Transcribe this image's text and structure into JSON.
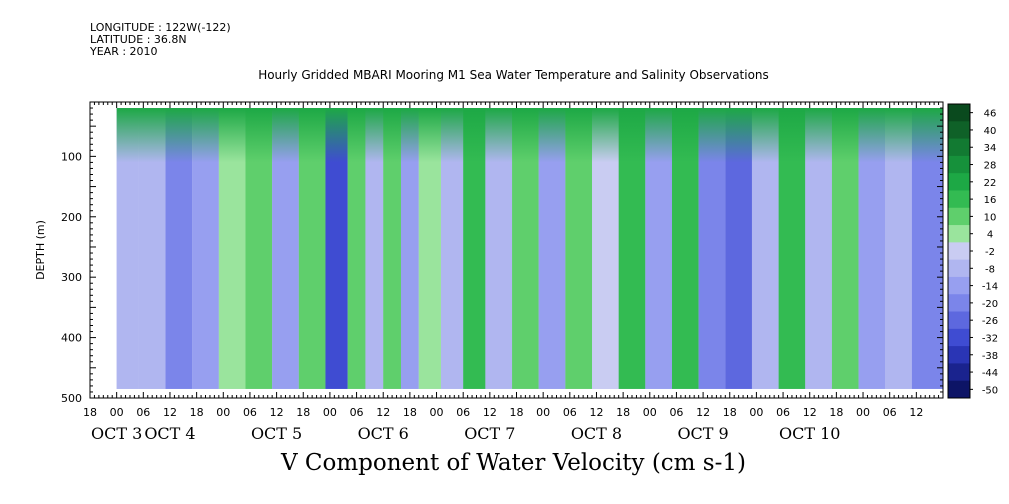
{
  "header": {
    "longitude": "LONGITUDE : 122W(-122)",
    "latitude": "LATITUDE : 36.8N",
    "year": "YEAR : 2010"
  },
  "chart_data": {
    "type": "heatmap",
    "title": "Hourly Gridded MBARI Mooring M1 Sea Water Temperature and Salinity Observations",
    "xlabel": "V Component of Water Velocity (cm s-1)",
    "ylabel": "DEPTH (m)",
    "ylim": [
      500,
      10
    ],
    "y_ticks": [
      100,
      200,
      300,
      400,
      500
    ],
    "x_range_hours": [
      -6,
      186
    ],
    "x_hour_ticks": [
      "18",
      "00",
      "06",
      "12",
      "18",
      "00",
      "06",
      "12",
      "18",
      "00",
      "06",
      "12",
      "18",
      "00",
      "06",
      "12",
      "18",
      "00",
      "06",
      "12",
      "18",
      "00",
      "06",
      "12",
      "18",
      "00",
      "06",
      "12",
      "18",
      "00",
      "06",
      "12"
    ],
    "x_day_labels": [
      {
        "label": "OCT  3",
        "hour": 0
      },
      {
        "label": "OCT  4",
        "hour": 12
      },
      {
        "label": "OCT  5",
        "hour": 36
      },
      {
        "label": "OCT  6",
        "hour": 60
      },
      {
        "label": "OCT  7",
        "hour": 84
      },
      {
        "label": "OCT  8",
        "hour": 108
      },
      {
        "label": "OCT  9",
        "hour": 132
      },
      {
        "label": "OCT 10",
        "hour": 156
      }
    ],
    "colorbar": {
      "labels": [
        "46",
        "40",
        "34",
        "28",
        "22",
        "16",
        "10",
        "4",
        "-2",
        "-8",
        "-14",
        "-20",
        "-26",
        "-32",
        "-38",
        "-44",
        "-50"
      ],
      "bands": [
        {
          "min": 43,
          "color": "#0a4a1e"
        },
        {
          "min": 37,
          "color": "#0f6128"
        },
        {
          "min": 31,
          "color": "#127a32"
        },
        {
          "min": 25,
          "color": "#16913b"
        },
        {
          "min": 19,
          "color": "#1da845"
        },
        {
          "min": 13,
          "color": "#33bb52"
        },
        {
          "min": 7,
          "color": "#5fcf6c"
        },
        {
          "min": 1,
          "color": "#9ae49d"
        },
        {
          "min": -5,
          "color": "#c9ccf2"
        },
        {
          "min": -11,
          "color": "#b0b6f0"
        },
        {
          "min": -17,
          "color": "#979ff0"
        },
        {
          "min": -23,
          "color": "#7b85ea"
        },
        {
          "min": -29,
          "color": "#5d68df"
        },
        {
          "min": -35,
          "color": "#3f4cd2"
        },
        {
          "min": -41,
          "color": "#2a35b5"
        },
        {
          "min": -47,
          "color": "#1a238e"
        },
        {
          "min": -999,
          "color": "#0d1466"
        }
      ]
    },
    "data_hour_range": [
      0,
      186
    ],
    "data_depth_range": [
      20,
      485
    ],
    "stripes": [
      {
        "hour": 2,
        "value": -10
      },
      {
        "hour": 8,
        "value": -6
      },
      {
        "hour": 14,
        "value": -18
      },
      {
        "hour": 20,
        "value": -12
      },
      {
        "hour": 26,
        "value": 6
      },
      {
        "hour": 32,
        "value": 8
      },
      {
        "hour": 38,
        "value": -16
      },
      {
        "hour": 44,
        "value": 10
      },
      {
        "hour": 50,
        "value": -30
      },
      {
        "hour": 54,
        "value": 12
      },
      {
        "hour": 58,
        "value": -8
      },
      {
        "hour": 62,
        "value": 8
      },
      {
        "hour": 66,
        "value": -14
      },
      {
        "hour": 70,
        "value": 6
      },
      {
        "hour": 76,
        "value": -6
      },
      {
        "hour": 80,
        "value": 14
      },
      {
        "hour": 86,
        "value": -10
      },
      {
        "hour": 92,
        "value": 10
      },
      {
        "hour": 98,
        "value": -16
      },
      {
        "hour": 104,
        "value": 12
      },
      {
        "hour": 110,
        "value": -4
      },
      {
        "hour": 116,
        "value": 16
      },
      {
        "hour": 122,
        "value": -12
      },
      {
        "hour": 128,
        "value": 18
      },
      {
        "hour": 134,
        "value": -18
      },
      {
        "hour": 140,
        "value": -24
      },
      {
        "hour": 146,
        "value": -10
      },
      {
        "hour": 152,
        "value": 14
      },
      {
        "hour": 158,
        "value": -6
      },
      {
        "hour": 164,
        "value": 8
      },
      {
        "hour": 170,
        "value": -14
      },
      {
        "hour": 176,
        "value": -10
      },
      {
        "hour": 182,
        "value": -18
      }
    ],
    "surface_value": 24
  }
}
